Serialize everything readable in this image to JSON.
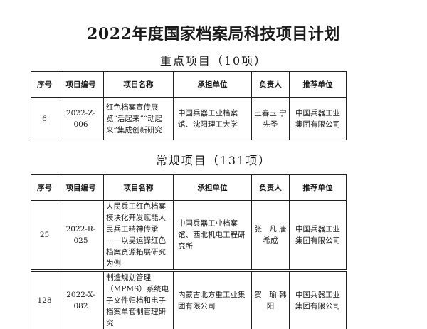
{
  "title": "2022年度国家档案局科技项目计划",
  "sections": [
    {
      "heading": "重点项目（10项）",
      "columns": [
        "序号",
        "项目编号",
        "项目名称",
        "承担单位",
        "负责人",
        "推荐单位"
      ],
      "rows": [
        {
          "no": "6",
          "code": "2022-Z-006",
          "name": "红色档案宣传展览“活起来”“动起来”集成创新研究",
          "unit": "中国兵器工业档案馆、沈阳理工大学",
          "leader": "王春玉 宁先圣",
          "recommender": "中国兵器工业集团有限公司"
        }
      ]
    },
    {
      "heading": "常规项目（131项）",
      "columns": [
        "序号",
        "项目编号",
        "项目名称",
        "承担单位",
        "负责人",
        "推荐单位"
      ],
      "rows": [
        {
          "no": "25",
          "code": "2022-R-025",
          "name": "人民兵工红色档案模块化开发赋能人民兵工精神传承——以吴运铎红色档案资源拓展研究为例",
          "unit": "中国兵器工业档案馆、西北机电工程研究所",
          "leader": "张　凡 唐希成",
          "recommender": "中国兵器工业集团有限公司"
        },
        {
          "no": "128",
          "code": "2022-X-082",
          "name": "制造规划管理（MPMS）系统电子文件归档和电子档案单套制管理研究",
          "unit": "内蒙古北方重工业集团有限公司",
          "leader": "贺　瑜 韩　阳",
          "recommender": "中国兵器工业集团有限公司"
        }
      ]
    }
  ]
}
